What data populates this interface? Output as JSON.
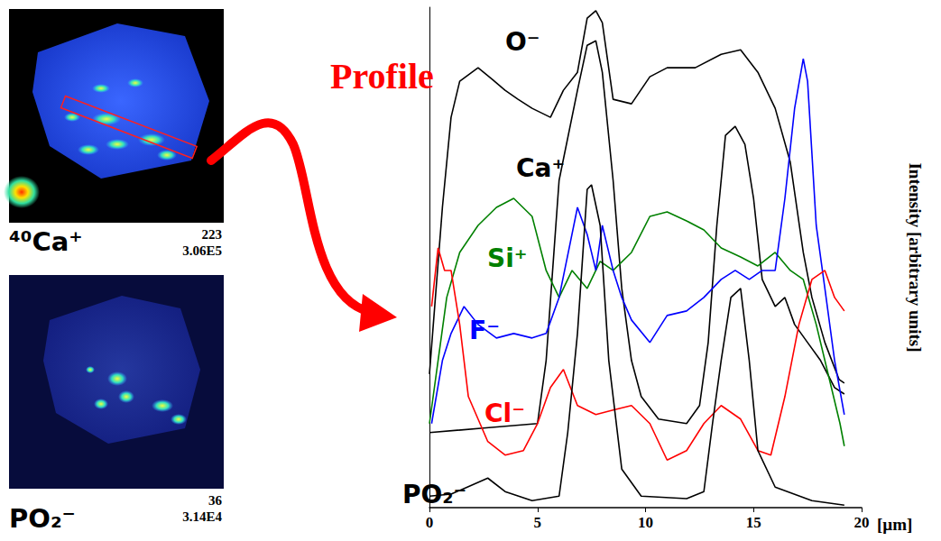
{
  "annotation": "Profile",
  "images": [
    {
      "label": "⁴⁰Ca⁺",
      "max": 223,
      "total": "3.06E5"
    },
    {
      "label": "PO₂⁻",
      "max": 36,
      "total": "3.14E4"
    }
  ],
  "chart_data": {
    "type": "line",
    "x_label": "[µm]",
    "y_label": "Intensity [arbitrary units]",
    "xlim": [
      0,
      20
    ],
    "xticks": [
      0,
      5,
      10,
      15,
      20
    ],
    "ylim": [
      0,
      100
    ],
    "tick_labels": "x",
    "grid": false,
    "series": [
      {
        "name": "O⁻",
        "color": "#000000",
        "x": [
          0,
          0.6,
          1,
          1.4,
          2.25,
          2.9,
          3.5,
          4.1,
          4.75,
          5.6,
          6.2,
          6.85,
          7.3,
          7.7,
          8,
          8.5,
          9.35,
          10.2,
          11,
          12.3,
          13.5,
          14.4,
          15.2,
          16,
          16.7,
          17.3,
          17.7,
          18.3,
          18.96,
          19.2
        ],
        "values": [
          26.7,
          60,
          78,
          85.2,
          87.9,
          85.6,
          83.4,
          81.6,
          79.8,
          78,
          83.4,
          87,
          97.8,
          99.3,
          96.9,
          81.6,
          80.7,
          86.1,
          87.9,
          87.9,
          90.6,
          91.5,
          87,
          79.8,
          69,
          51,
          42,
          33,
          25.6,
          24.9
        ]
      },
      {
        "name": "Ca⁺",
        "color": "#000000",
        "x": [
          0,
          2.5,
          5,
          5.4,
          6,
          6.85,
          7.3,
          7.7,
          8,
          8.5,
          8.9,
          9.35,
          9.8,
          10.6,
          11.9,
          12.5,
          12.9,
          13.3,
          13.7,
          14.15,
          14.6,
          15,
          15.4,
          16,
          16.45,
          16.9,
          17.5,
          18.1,
          18.75,
          19.2
        ],
        "values": [
          15,
          15.9,
          16.8,
          29.4,
          65.4,
          83.4,
          92.4,
          93.3,
          87,
          65.4,
          43.8,
          29.4,
          22.2,
          17.7,
          16.8,
          20.4,
          33,
          56.4,
          74.4,
          76.2,
          72.6,
          61.8,
          45.6,
          40.2,
          42,
          36.6,
          33,
          29.4,
          24,
          22.7
        ]
      },
      {
        "name": "Si⁺",
        "color": "#008000",
        "x": [
          0,
          0.4,
          0.8,
          1.4,
          2.25,
          3.1,
          3.9,
          4.75,
          5.4,
          6,
          6.6,
          7.3,
          7.9,
          8.5,
          9.35,
          10.2,
          11,
          11.9,
          12.7,
          13.5,
          14.4,
          15.2,
          16,
          16.7,
          17.3,
          17.9,
          18.5,
          19,
          19.2
        ],
        "values": [
          16.8,
          29.4,
          42,
          51,
          56.4,
          60,
          61.8,
          58.2,
          47.4,
          42,
          47.4,
          43.8,
          49.2,
          47.4,
          51,
          58.2,
          59.1,
          57.3,
          55.5,
          51.9,
          50.1,
          48.3,
          51,
          47.4,
          45.6,
          36.6,
          25.8,
          16.8,
          12.3
        ]
      },
      {
        "name": "F⁻",
        "color": "#0000ff",
        "x": [
          0.1,
          0.6,
          1,
          1.6,
          2.25,
          3.1,
          3.9,
          4.75,
          5.4,
          6,
          6.85,
          7.3,
          7.7,
          8,
          8.5,
          8.9,
          9.35,
          10.2,
          11,
          11.9,
          12.7,
          13.5,
          14.15,
          14.8,
          15.4,
          16,
          16.45,
          16.9,
          17.3,
          17.5,
          17.9,
          18.3,
          18.75,
          19.2
        ],
        "values": [
          16.8,
          29.4,
          34.8,
          40.2,
          36.6,
          33.9,
          34.8,
          33.9,
          34.8,
          42,
          60,
          54.6,
          47.4,
          56.4,
          47.4,
          42,
          37.5,
          33,
          38.4,
          39.3,
          42,
          45.6,
          47.4,
          45.6,
          47.4,
          47.4,
          61.8,
          79.8,
          89.7,
          85.2,
          56.4,
          43.8,
          29.4,
          18.6
        ]
      },
      {
        "name": "Cl⁻",
        "color": "#ff0000",
        "x": [
          0.1,
          0.4,
          0.7,
          1,
          1.4,
          1.8,
          2.7,
          3.5,
          4.35,
          5,
          5.6,
          6.2,
          6.85,
          7.7,
          8.5,
          9.35,
          10.2,
          11,
          11.9,
          12.7,
          13.5,
          14.4,
          15.2,
          15.8,
          16.45,
          17.1,
          17.7,
          18.3,
          18.75,
          19.2
        ],
        "values": [
          40.2,
          51.9,
          47.4,
          47.4,
          36.6,
          22.2,
          13.2,
          10.5,
          11.4,
          16.8,
          24,
          27.6,
          20.4,
          18.6,
          19.5,
          20.4,
          16.8,
          9.5,
          11.4,
          16.8,
          20.4,
          17.7,
          11.4,
          10.5,
          22.2,
          36.6,
          45.6,
          47.4,
          42,
          39.3
        ]
      },
      {
        "name": "PO₂⁻",
        "color": "#000000",
        "x": [
          0,
          1,
          2.7,
          3.5,
          4.75,
          6,
          6.4,
          6.85,
          7.3,
          7.5,
          7.9,
          8.3,
          8.9,
          9.8,
          11.9,
          12.7,
          13.1,
          13.5,
          13.95,
          14.4,
          14.8,
          15.2,
          16,
          17.7,
          19.2
        ],
        "values": [
          2.3,
          2.7,
          5.9,
          3.2,
          1.4,
          2.3,
          15,
          34.8,
          63.6,
          64.5,
          56.4,
          29.4,
          7.7,
          2.3,
          1.8,
          3.2,
          16.8,
          29.4,
          42,
          43.8,
          29.4,
          11.4,
          4.1,
          1.4,
          0.5
        ]
      }
    ]
  }
}
